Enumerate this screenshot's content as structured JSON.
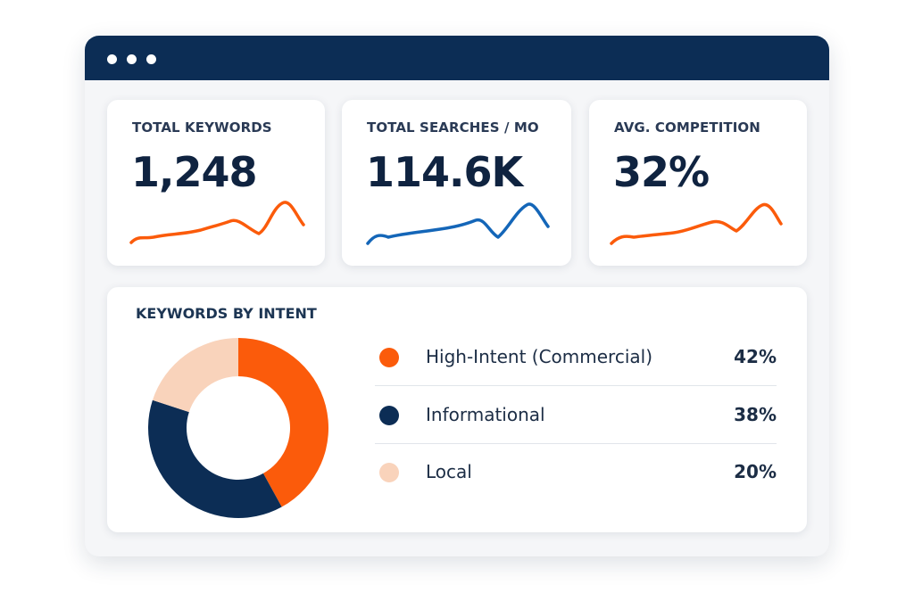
{
  "window": {
    "title_bar_dots": [
      "window-dot",
      "window-dot",
      "window-dot"
    ]
  },
  "colors": {
    "navy": "#0c2d55",
    "orange": "#fb5b0b",
    "blue": "#1466b8",
    "peach": "#f9d3bb"
  },
  "kpis": [
    {
      "label": "TOTAL KEYWORDS",
      "value": "1,248",
      "trend_color": "orange"
    },
    {
      "label": "TOTAL SEARCHES / MO",
      "value": "114.6K",
      "trend_color": "blue"
    },
    {
      "label": "AVG. COMPETITION",
      "value": "32%",
      "trend_color": "orange"
    }
  ],
  "intent": {
    "title": "KEYWORDS BY INTENT",
    "chart_data": {
      "type": "pie",
      "variant": "donut",
      "categories": [
        "High-Intent (Commercial)",
        "Informational",
        "Local"
      ],
      "values": [
        42,
        38,
        20
      ],
      "colors": [
        "#fb5b0b",
        "#0c2d55",
        "#f9d3bb"
      ]
    },
    "legend": [
      {
        "label": "High-Intent (Commercial)",
        "pct": "42%"
      },
      {
        "label": "Informational",
        "pct": "38%"
      },
      {
        "label": "Local",
        "pct": "20%"
      }
    ]
  }
}
